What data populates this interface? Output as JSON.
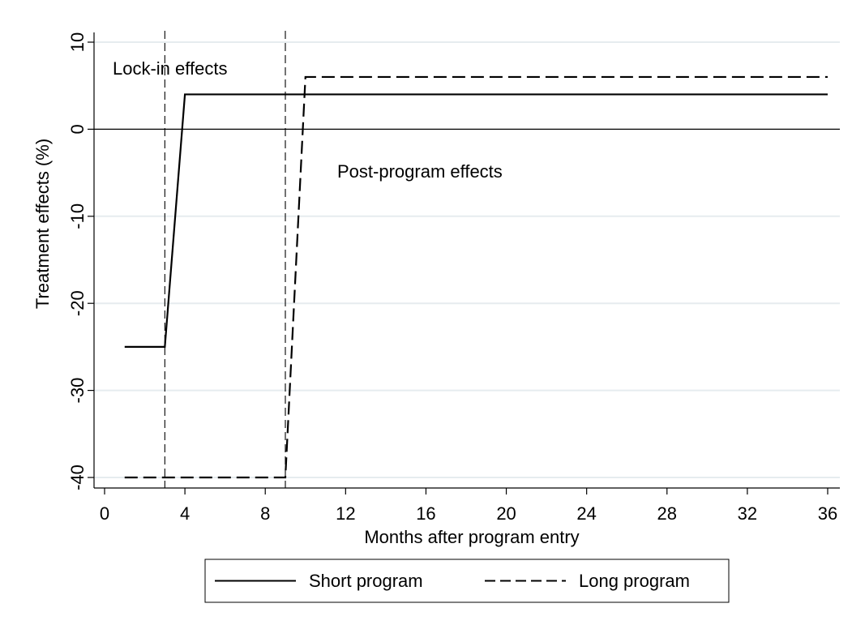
{
  "chart_data": {
    "type": "line",
    "title": "",
    "xlabel": "Months after program entry",
    "ylabel": "Treatment effects (%)",
    "xlim": [
      0,
      36
    ],
    "ylim": [
      -40,
      10
    ],
    "xticks": [
      0,
      4,
      8,
      12,
      16,
      20,
      24,
      28,
      32,
      36
    ],
    "yticks": [
      -40,
      -30,
      -20,
      -10,
      0,
      10
    ],
    "xtick_labels": [
      "0",
      "4",
      "8",
      "12",
      "16",
      "20",
      "24",
      "28",
      "32",
      "36"
    ],
    "ytick_labels": [
      "-40",
      "-30",
      "-20",
      "-10",
      "0",
      "10"
    ],
    "grid": "horizontal",
    "reference_lines": {
      "horizontal": [
        0
      ],
      "vertical": [
        3,
        9
      ]
    },
    "annotations": [
      {
        "text": "Lock-in effects",
        "x": 1,
        "y": 7
      },
      {
        "text": "Post-program effects",
        "x": 12,
        "y": -5
      }
    ],
    "legend": {
      "position": "bottom",
      "entries": [
        "Short program",
        "Long program"
      ]
    },
    "series": [
      {
        "name": "Short program",
        "style": "solid",
        "x": [
          1,
          3,
          4,
          36
        ],
        "y": [
          -25,
          -25,
          4,
          4
        ]
      },
      {
        "name": "Long program",
        "style": "dashed",
        "x": [
          1,
          9,
          10,
          36
        ],
        "y": [
          -40,
          -40,
          6,
          6
        ]
      }
    ],
    "colors": {
      "line": "#000000",
      "grid": "#e6ecef",
      "background": "#ffffff"
    }
  }
}
